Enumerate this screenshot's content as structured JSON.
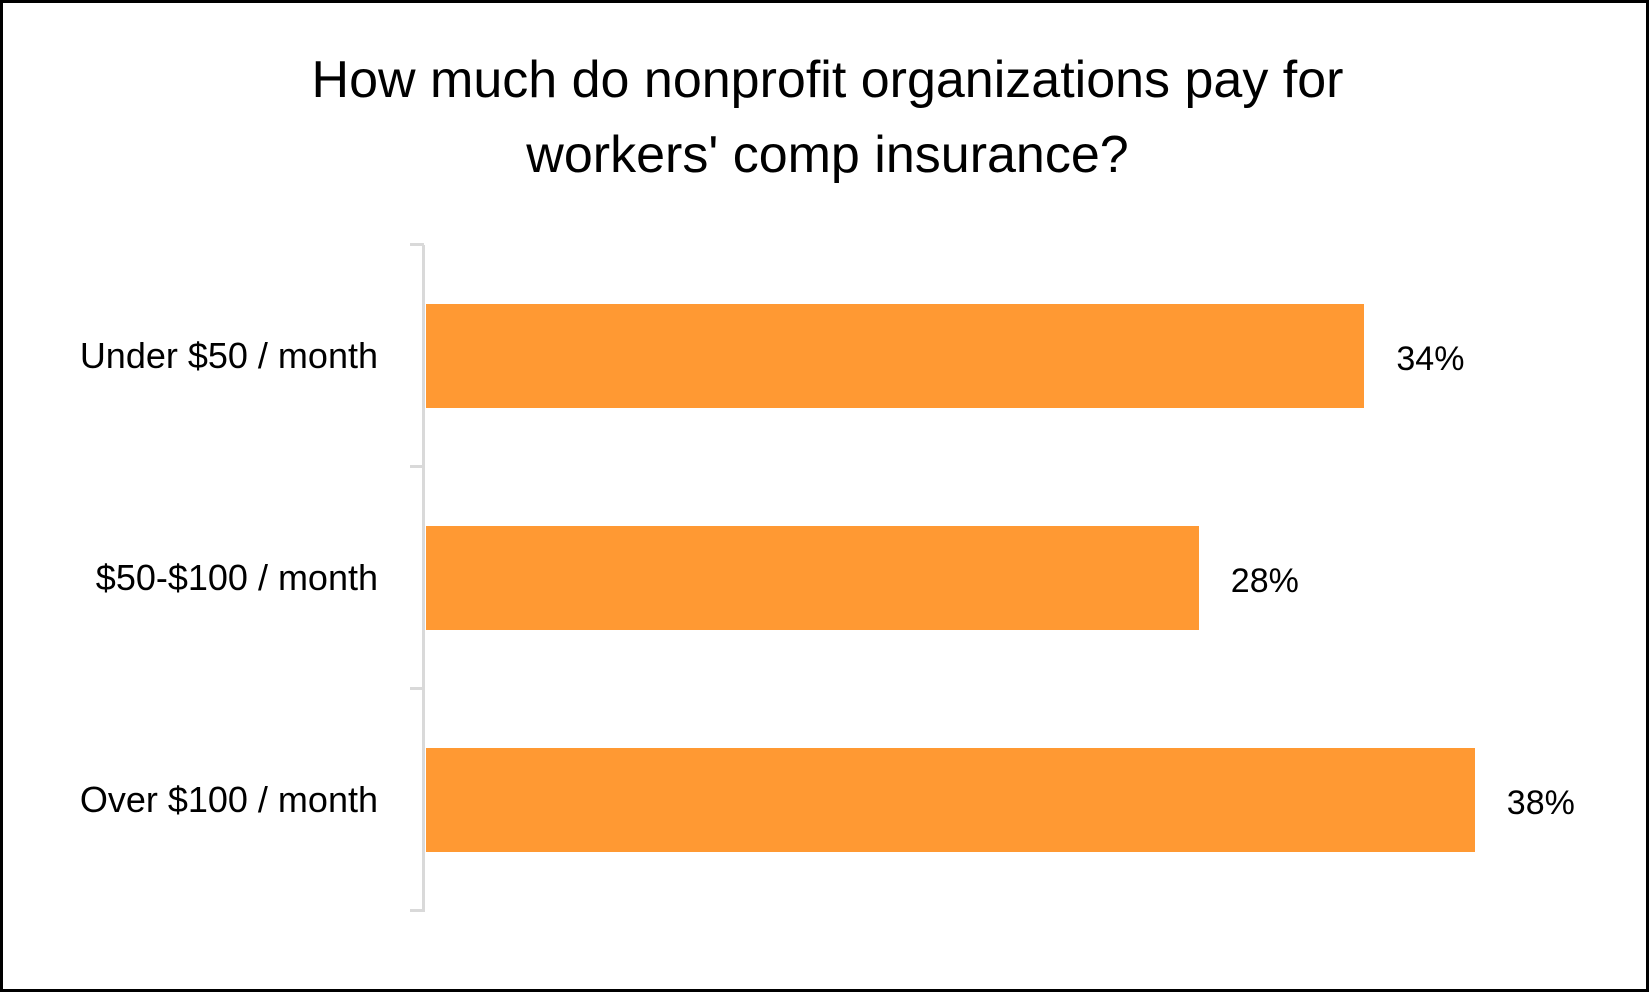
{
  "chart_data": {
    "type": "bar",
    "orientation": "horizontal",
    "title": "How much do nonprofit organizations pay for workers' comp insurance?",
    "title_lines": [
      "How much do nonprofit organizations pay for",
      "workers' comp insurance?"
    ],
    "categories": [
      "Under $50 / month",
      "$50-$100 / month",
      "Over $100 / month"
    ],
    "values": [
      34,
      28,
      38
    ],
    "value_labels": [
      "34%",
      "28%",
      "38%"
    ],
    "xlabel": "",
    "ylabel": "",
    "unit": "%",
    "grid": false,
    "legend": null,
    "bar_color": "#ff9933",
    "axis_color": "#d9d9d9"
  },
  "colors": {
    "bar": "#ff9933",
    "axis": "#d9d9d9",
    "text": "#000000",
    "border": "#000000",
    "background": "#ffffff"
  }
}
